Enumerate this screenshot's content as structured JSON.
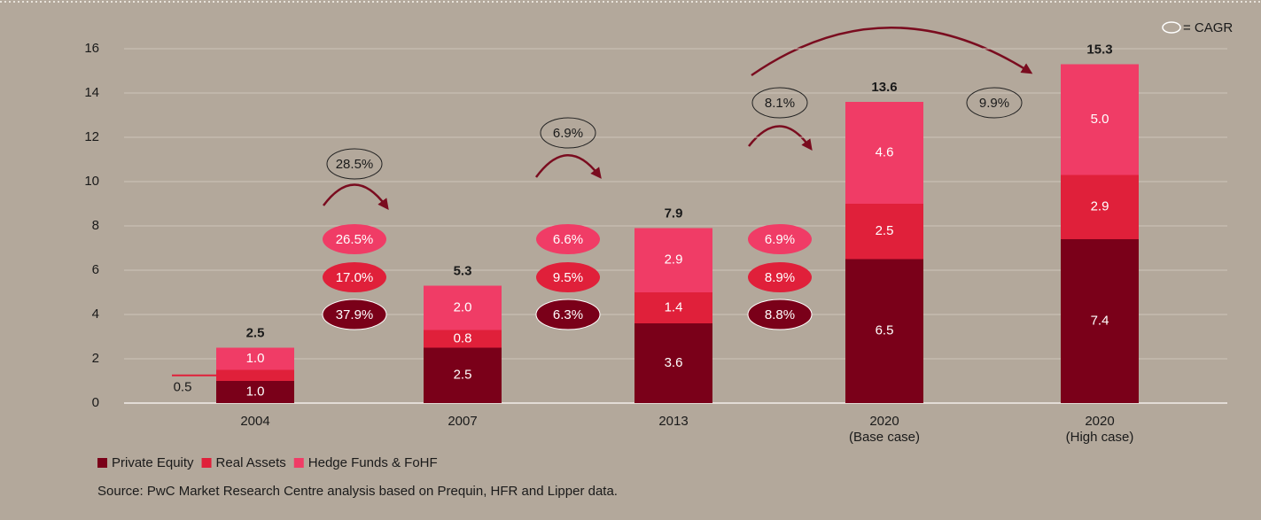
{
  "chart_data": {
    "type": "stacked_bar",
    "categories": [
      "2004",
      "2007",
      "2013",
      "2020\n(Base case)",
      "2020\n(High case)"
    ],
    "series": [
      {
        "name": "Private Equity",
        "color": "#7a0019",
        "values": [
          1.0,
          2.5,
          3.6,
          6.5,
          7.4
        ],
        "value_labels": [
          "1.0",
          "2.5",
          "3.6",
          "6.5",
          "7.4"
        ]
      },
      {
        "name": "Real Assets",
        "color": "#e0203a",
        "values": [
          0.5,
          0.8,
          1.4,
          2.5,
          2.9
        ],
        "value_labels": [
          "0.5",
          "0.8",
          "1.4",
          "2.5",
          "2.9"
        ]
      },
      {
        "name": "Hedge Funds & FoHF",
        "color": "#f03c66",
        "values": [
          1.0,
          2.0,
          2.9,
          4.6,
          5.0
        ],
        "value_labels": [
          "1.0",
          "2.0",
          "2.9",
          "4.6",
          "5.0"
        ]
      }
    ],
    "totals": [
      2.5,
      5.3,
      7.9,
      13.6,
      15.3
    ],
    "ylim": [
      0,
      16
    ],
    "yticks": [
      0,
      2,
      4,
      6,
      8,
      10,
      12,
      14,
      16
    ],
    "grid": true,
    "cagr_legend": "= CAGR",
    "cagr": [
      {
        "overall": "28.5%",
        "segments": [
          "37.9%",
          "17.0%",
          "26.5%"
        ]
      },
      {
        "overall": "6.9%",
        "segments": [
          "6.3%",
          "9.5%",
          "6.6%"
        ]
      },
      {
        "overall": "8.1%",
        "segments": [
          "8.8%",
          "8.9%",
          "6.9%"
        ]
      },
      {
        "overall": "9.9%"
      }
    ],
    "source": "Source: PwC Market Research Centre analysis based on Prequin, HFR and Lipper data."
  }
}
